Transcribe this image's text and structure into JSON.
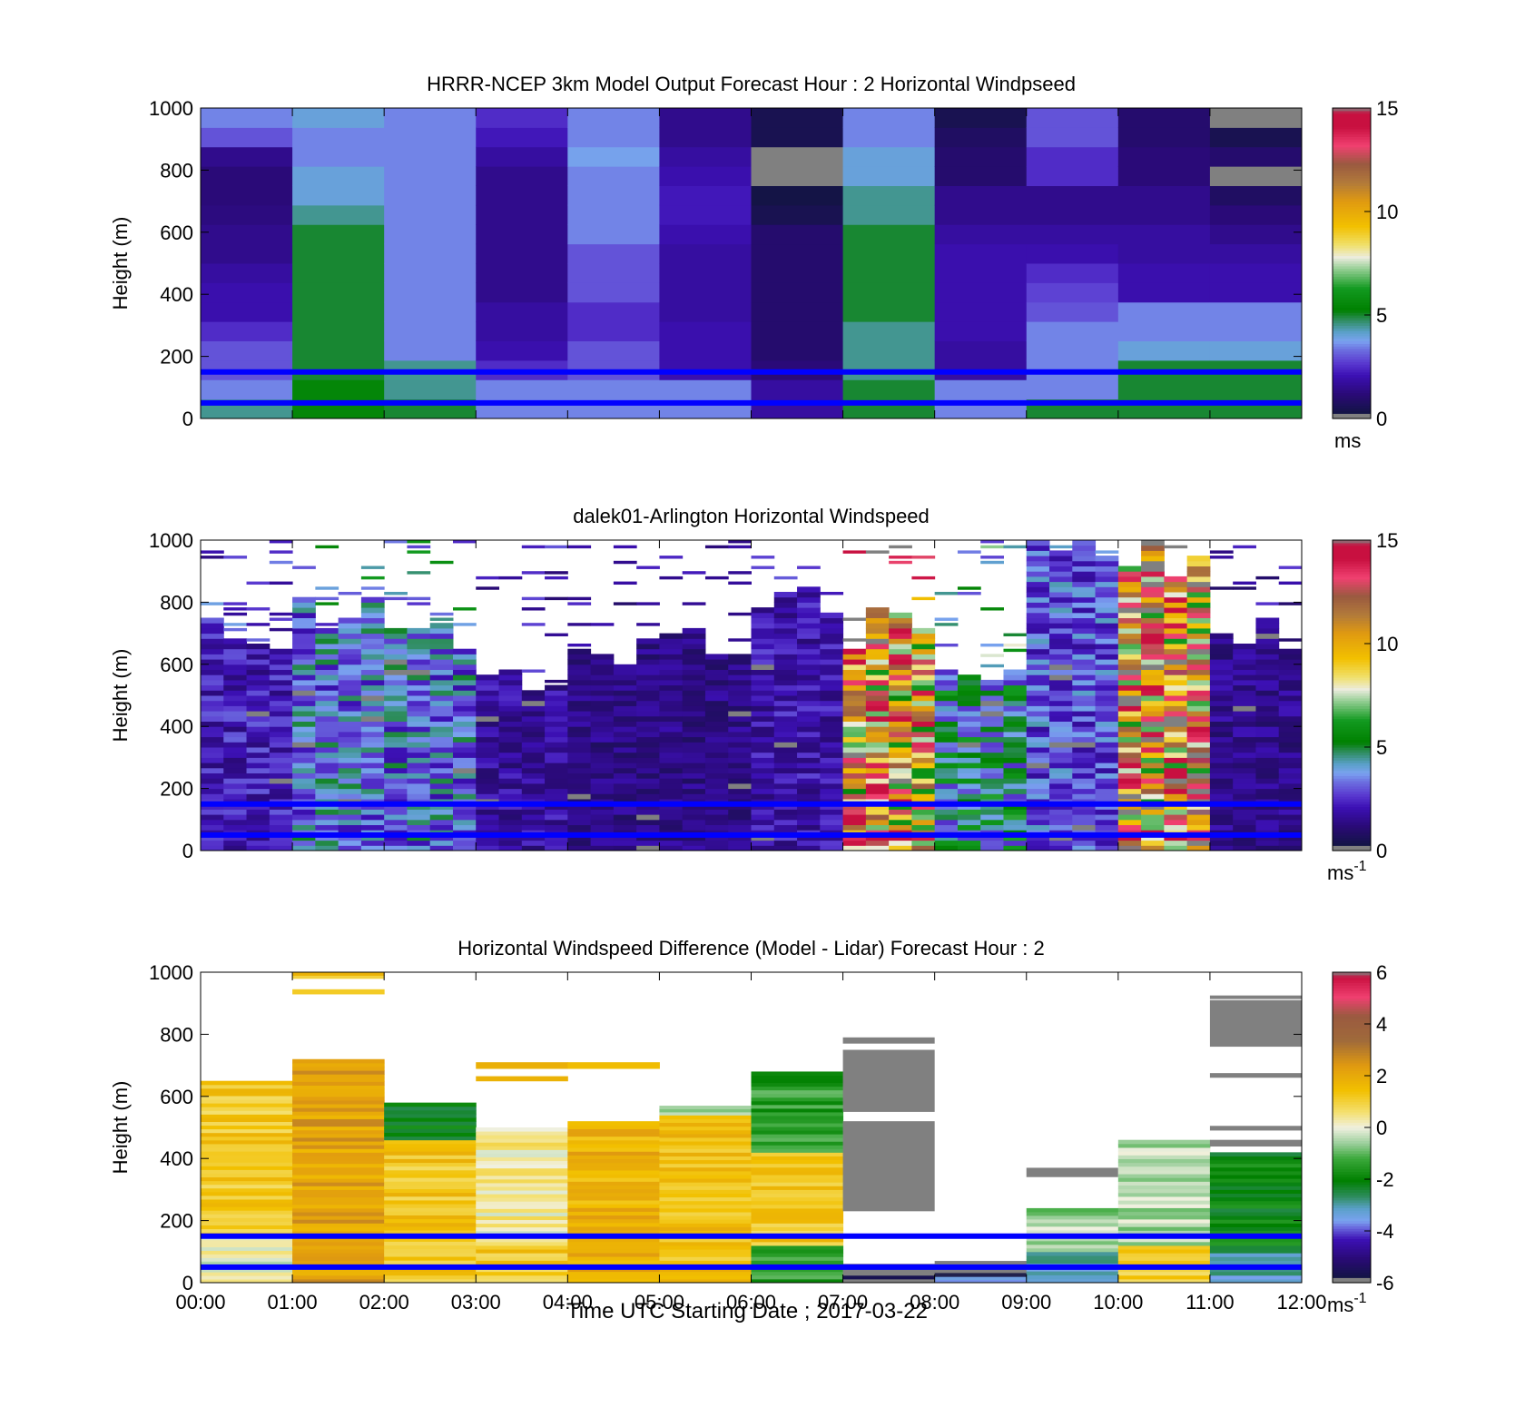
{
  "figure": {
    "background": "#ffffff",
    "xlabel": "Time UTC  Starting Date ; 2017-03-22"
  },
  "chart_data": [
    {
      "type": "heatmap",
      "title": "HRRR-NCEP 3km Model Output   Forecast Hour : 2 Horizontal Windpseed",
      "ylabel": "Height (m)",
      "ylim": [
        0,
        1000
      ],
      "yticks": [
        "0",
        "200",
        "400",
        "600",
        "800",
        "1000"
      ],
      "x_categories": [
        "00:00",
        "01:00",
        "02:00",
        "03:00",
        "04:00",
        "05:00",
        "06:00",
        "07:00",
        "08:00",
        "09:00",
        "10:00",
        "11:00",
        "12:00"
      ],
      "show_x_ticklabels": false,
      "colorbar": {
        "min": 0,
        "max": 15,
        "ticks": [
          "0",
          "5",
          "10",
          "15"
        ],
        "unit": "ms"
      },
      "reference_heights_m": [
        50,
        150
      ],
      "reference_color": "#0000ff",
      "hour_columns_ms": [
        [
          4.5,
          3.5,
          3,
          3,
          2.5,
          2,
          2,
          1.8,
          1.5,
          1.5,
          1.3,
          1.2,
          1.2,
          1.5,
          3,
          3.5
        ],
        [
          5.5,
          5.5,
          5,
          5,
          5,
          5,
          5,
          5,
          5,
          5,
          4.5,
          4,
          4,
          3.5,
          3.5,
          4
        ],
        [
          5,
          4.5,
          4.5,
          3.5,
          3.5,
          3.5,
          3.5,
          3.5,
          3.5,
          3.5,
          3.5,
          3.5,
          3.5,
          3.5,
          3.5,
          3.5
        ],
        [
          3.5,
          3.5,
          2.5,
          2,
          1.8,
          1.8,
          1.5,
          1.5,
          1.5,
          1.5,
          1.5,
          1.5,
          1.5,
          1.8,
          2.2,
          2.5
        ],
        [
          3.5,
          3.5,
          3,
          3,
          2.5,
          2.5,
          3,
          3,
          3,
          3.5,
          3.5,
          3.5,
          3.5,
          3.8,
          3.5,
          3.5
        ],
        [
          3.5,
          3.5,
          2,
          2,
          2,
          1.8,
          1.8,
          1.8,
          1.8,
          2,
          2.2,
          2.2,
          2,
          1.8,
          1.5,
          1.5
        ],
        [
          1.8,
          1.8,
          1.2,
          1,
          1,
          1,
          1,
          1,
          1,
          1,
          0.5,
          0.3,
          0,
          0,
          0.5,
          0.5
        ],
        [
          5,
          5,
          4.5,
          4.5,
          4.5,
          5,
          5,
          5,
          5,
          5,
          4.5,
          4.5,
          4,
          4,
          3.5,
          3.5
        ],
        [
          3.5,
          3.5,
          1.8,
          1.8,
          2,
          2,
          2,
          2,
          2,
          1.8,
          1.5,
          1.5,
          1,
          1,
          0.8,
          0.5
        ],
        [
          5,
          3.5,
          3.5,
          3.5,
          3.5,
          3,
          2.8,
          2.5,
          2,
          1.8,
          1.5,
          1.5,
          2.5,
          2.5,
          3,
          3
        ],
        [
          5,
          5,
          5,
          4,
          3.5,
          3.5,
          2,
          2,
          1.8,
          1.8,
          1.5,
          1.5,
          1.2,
          1.2,
          1,
          1
        ],
        [
          5,
          5,
          5,
          4,
          3.5,
          3.5,
          2,
          2,
          1.8,
          1.5,
          1.2,
          0.8,
          0,
          1,
          0.5,
          0
        ]
      ]
    },
    {
      "type": "heatmap",
      "title": "dalek01-Arlington  Horizontal Windspeed",
      "ylabel": "Height (m)",
      "ylim": [
        0,
        1000
      ],
      "yticks": [
        "0",
        "200",
        "400",
        "600",
        "800",
        "1000"
      ],
      "x_categories": [
        "00:00",
        "01:00",
        "02:00",
        "03:00",
        "04:00",
        "05:00",
        "06:00",
        "07:00",
        "08:00",
        "09:00",
        "10:00",
        "11:00",
        "12:00"
      ],
      "show_x_ticklabels": false,
      "colorbar": {
        "min": 0,
        "max": 15,
        "ticks": [
          "0",
          "5",
          "10",
          "15"
        ],
        "unit": "ms-1"
      },
      "reference_heights_m": [
        50,
        150
      ],
      "reference_color": "#0000ff",
      "hour_tops_m": [
        700,
        780,
        720,
        580,
        650,
        680,
        800,
        750,
        600,
        1000,
        980,
        720
      ],
      "hour_mean_ms": [
        2.2,
        3.5,
        3.5,
        1.8,
        1.4,
        1.4,
        2,
        10,
        4.5,
        3,
        11,
        1.5
      ],
      "missing_color": "#ffffff"
    },
    {
      "type": "heatmap",
      "title": "Horizontal Windspeed Difference (Model - Lidar) Forecast Hour : 2",
      "ylabel": "Height (m)",
      "ylim": [
        0,
        1000
      ],
      "yticks": [
        "0",
        "200",
        "400",
        "600",
        "800",
        "1000"
      ],
      "x_categories": [
        "00:00",
        "01:00",
        "02:00",
        "03:00",
        "04:00",
        "05:00",
        "06:00",
        "07:00",
        "08:00",
        "09:00",
        "10:00",
        "11:00",
        "12:00"
      ],
      "show_x_ticklabels": true,
      "colorbar": {
        "min": -6,
        "max": 6,
        "ticks": [
          "-6",
          "-4",
          "-2",
          "0",
          "2",
          "4",
          "6"
        ],
        "unit": "ms-1"
      },
      "reference_heights_m": [
        50,
        150
      ],
      "reference_color": "#0000ff",
      "hour_bands": [
        [
          [
            0,
            150,
            0
          ],
          [
            150,
            650,
            1.2
          ]
        ],
        [
          [
            0,
            720,
            2.2
          ],
          [
            930,
            945,
            1.5
          ],
          [
            980,
            1000,
            1.5
          ]
        ],
        [
          [
            0,
            460,
            1.3
          ],
          [
            460,
            580,
            -2
          ]
        ],
        [
          [
            0,
            120,
            1.2
          ],
          [
            120,
            500,
            0.3
          ],
          [
            650,
            665,
            1.5
          ],
          [
            690,
            710,
            1.5
          ]
        ],
        [
          [
            0,
            520,
            1.8
          ],
          [
            690,
            710,
            1.5
          ]
        ],
        [
          [
            0,
            540,
            1.5
          ],
          [
            540,
            570,
            -0.5
          ]
        ],
        [
          [
            0,
            120,
            -1.5
          ],
          [
            120,
            420,
            1.2
          ],
          [
            420,
            680,
            -1.5
          ]
        ],
        [
          [
            0,
            60,
            -6
          ],
          [
            60,
            200,
            "gap"
          ],
          [
            230,
            520,
            "nan"
          ],
          [
            550,
            750,
            "nan"
          ],
          [
            770,
            790,
            "nan"
          ]
        ],
        [
          [
            0,
            20,
            -4
          ],
          [
            20,
            70,
            -6
          ]
        ],
        [
          [
            0,
            100,
            -3
          ],
          [
            100,
            240,
            -0.5
          ],
          [
            340,
            370,
            "nan"
          ]
        ],
        [
          [
            0,
            120,
            1
          ],
          [
            120,
            460,
            -0.5
          ]
        ],
        [
          [
            0,
            120,
            -3
          ],
          [
            120,
            420,
            -2
          ],
          [
            440,
            460,
            -6
          ],
          [
            490,
            505,
            "nan"
          ],
          [
            660,
            675,
            "nan"
          ],
          [
            760,
            910,
            "nan"
          ],
          [
            915,
            925,
            -6
          ]
        ]
      ]
    }
  ]
}
